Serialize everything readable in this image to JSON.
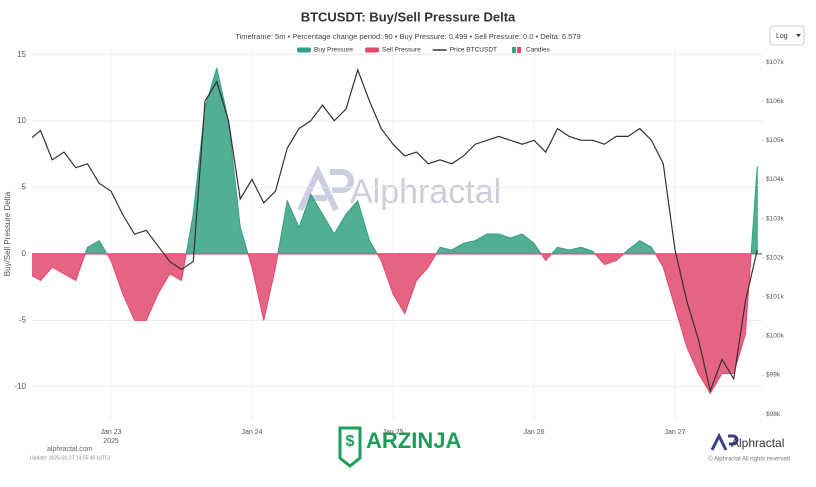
{
  "chart_data": {
    "type": "area",
    "title": "BTCUSDT: Buy/Sell Pressure Delta",
    "subtitle": "Timeframe: 5m • Percentage change period: 90 • Buy Pressure: 0.499 • Sell Pressure: 0.0 • Delta: 6.579",
    "y_label": "Buy/Sell Pressure Delta",
    "year": "2025",
    "categories": [
      null,
      null,
      null,
      null,
      null,
      null,
      null,
      "Jan 23",
      null,
      null,
      null,
      null,
      null,
      null,
      null,
      null,
      null,
      null,
      null,
      "Jan 24",
      null,
      null,
      null,
      null,
      null,
      null,
      null,
      null,
      null,
      null,
      null,
      "Jan 25",
      null,
      null,
      null,
      null,
      null,
      null,
      null,
      null,
      null,
      null,
      null,
      "Jan 26",
      null,
      null,
      null,
      null,
      null,
      null,
      null,
      null,
      null,
      null,
      null,
      "Jan 27",
      null,
      null,
      null,
      null,
      null,
      null,
      null
    ],
    "values": [
      -1.5,
      -2,
      -1,
      -1.5,
      -2,
      0.5,
      1,
      -0.5,
      -3,
      -5,
      -5,
      -3,
      -1.5,
      -2,
      3,
      11,
      14,
      10,
      2,
      -1,
      -5,
      -1,
      4,
      2,
      4.5,
      3,
      1.5,
      3,
      4,
      1,
      -0.5,
      -3,
      -4.5,
      -2,
      -1,
      0.5,
      0.3,
      0.8,
      1,
      1.5,
      1.5,
      1.2,
      1.5,
      0.8,
      -0.5,
      0.5,
      0.3,
      0.5,
      0.2,
      -0.8,
      -0.5,
      0.3,
      1,
      0.5,
      -1,
      -4,
      -7,
      -9,
      -10.5,
      -9,
      -9,
      -6,
      6.6
    ],
    "legend": [
      {
        "name": "Buy Pressure",
        "color": "#33a081"
      },
      {
        "name": "Sell Pressure",
        "color": "#e2496d"
      }
    ],
    "series": [
      {
        "name": "Price BTCUSDT",
        "color": "#3a2f30",
        "axis": "y2",
        "values": [
          105000,
          105250,
          104500,
          104700,
          104300,
          104400,
          103900,
          103700,
          103100,
          102600,
          102700,
          102300,
          101900,
          101700,
          101900,
          106000,
          106500,
          105500,
          103500,
          104000,
          103400,
          103700,
          104800,
          105300,
          105500,
          105900,
          105500,
          105800,
          106800,
          106000,
          105300,
          104900,
          104600,
          104700,
          104400,
          104500,
          104400,
          104600,
          104900,
          105000,
          105100,
          105000,
          104900,
          105000,
          104700,
          105300,
          105100,
          105000,
          105000,
          104900,
          105100,
          105100,
          105300,
          105000,
          104400,
          102200,
          100900,
          99900,
          98600,
          99400,
          98900,
          100900,
          102200
        ]
      }
    ],
    "candles": {
      "name": "Candles",
      "color": "#e2496d"
    },
    "ylim": [
      -12.5,
      15.5
    ],
    "yticks": [
      -10,
      -5,
      0,
      5,
      10,
      15
    ],
    "y2lim": [
      97850,
      107360
    ],
    "y2ticks": [
      {
        "value": 98000,
        "label": "$98k"
      },
      {
        "value": 99000,
        "label": "$99k"
      },
      {
        "value": 100000,
        "label": "$100k"
      },
      {
        "value": 101000,
        "label": "$101k"
      },
      {
        "value": 102000,
        "label": "$102k"
      },
      {
        "value": 103000,
        "label": "$103k"
      },
      {
        "value": 104000,
        "label": "$104k"
      },
      {
        "value": 105000,
        "label": "$105k"
      },
      {
        "value": 106000,
        "label": "$106k"
      },
      {
        "value": 107000,
        "label": "$107k"
      }
    ],
    "grid": true
  },
  "scale_control": "Log",
  "watermark": "Alphractal",
  "sponsor": "ARZINJA",
  "footer": {
    "site": "alphractal.com",
    "update": "Update: 2025-01-27 14:55:40 (UTC)",
    "brand": "Alphractal",
    "copyright": "© Alphractal All rights reserved"
  }
}
